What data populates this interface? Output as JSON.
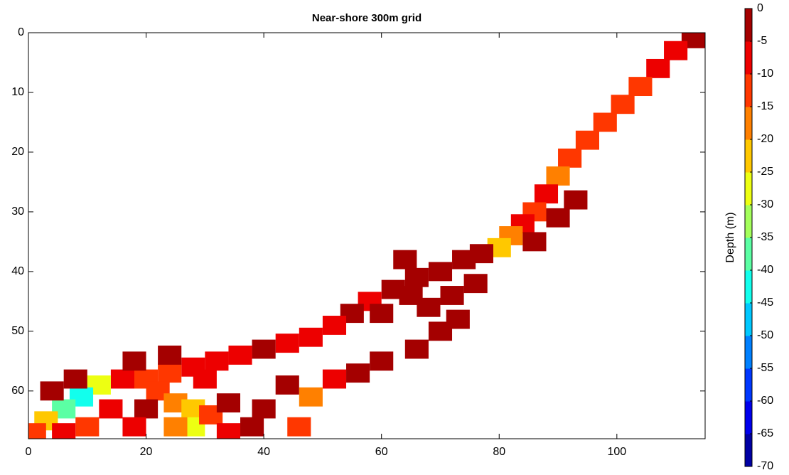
{
  "chart_data": {
    "type": "heatmap",
    "title": "Near-shore 300m grid",
    "colorbar_label": "Depth (m)",
    "xlim": [
      0,
      115
    ],
    "ylim": [
      0,
      68
    ],
    "y_reversed": true,
    "xticks": [
      0,
      20,
      40,
      60,
      80,
      100
    ],
    "yticks": [
      0,
      10,
      20,
      30,
      40,
      50,
      60
    ],
    "clim": [
      -70,
      0
    ],
    "cticks": [
      0,
      -5,
      -10,
      -15,
      -20,
      -25,
      -30,
      -35,
      -40,
      -45,
      -50,
      -55,
      -60,
      -65,
      -70
    ],
    "colormap": "jet",
    "x": [
      113,
      110,
      107,
      104,
      101,
      98,
      95,
      92,
      90,
      88,
      86,
      84,
      82,
      93,
      90,
      86,
      80,
      77,
      74,
      70,
      66,
      62,
      58,
      55,
      52,
      48,
      44,
      40,
      36,
      32,
      28,
      24,
      20,
      16,
      12,
      9,
      6,
      3,
      1,
      65,
      60,
      64,
      68,
      72,
      76,
      73,
      70,
      66,
      60,
      56,
      52,
      48,
      46,
      44,
      40,
      22,
      25,
      28,
      28,
      25,
      31,
      34,
      34,
      20,
      18,
      14,
      10,
      6,
      38,
      4,
      8,
      18,
      24,
      30
    ],
    "y": [
      1,
      3,
      6,
      9,
      12,
      15,
      18,
      21,
      24,
      27,
      30,
      32,
      34,
      28,
      31,
      35,
      36,
      37,
      38,
      40,
      41,
      43,
      45,
      47,
      49,
      51,
      52,
      53,
      54,
      55,
      56,
      57,
      58,
      58,
      59,
      61,
      63,
      65,
      67,
      44,
      47,
      38,
      46,
      44,
      42,
      48,
      50,
      53,
      55,
      57,
      58,
      61,
      66,
      59,
      63,
      60,
      62,
      63,
      66,
      66,
      64,
      62,
      67,
      63,
      66,
      63,
      66,
      67,
      66,
      60,
      58,
      55,
      54,
      58
    ],
    "values": [
      -5,
      -10,
      -10,
      -12,
      -15,
      -15,
      -12,
      -15,
      -20,
      -10,
      -15,
      -10,
      -20,
      -5,
      -5,
      -5,
      -25,
      -5,
      -5,
      -5,
      -5,
      -5,
      -10,
      -5,
      -10,
      -10,
      -10,
      -5,
      -10,
      -10,
      -10,
      -15,
      -15,
      -10,
      -30,
      -45,
      -40,
      -25,
      -15,
      -5,
      -5,
      -5,
      -5,
      -5,
      -5,
      -5,
      -5,
      -5,
      -5,
      -5,
      -10,
      -20,
      -15,
      -5,
      -5,
      -15,
      -20,
      -25,
      -30,
      -20,
      -15,
      -5,
      -10,
      -5,
      -10,
      -10,
      -15,
      -10,
      -5,
      -5,
      -5,
      -5,
      -5,
      -10
    ]
  }
}
